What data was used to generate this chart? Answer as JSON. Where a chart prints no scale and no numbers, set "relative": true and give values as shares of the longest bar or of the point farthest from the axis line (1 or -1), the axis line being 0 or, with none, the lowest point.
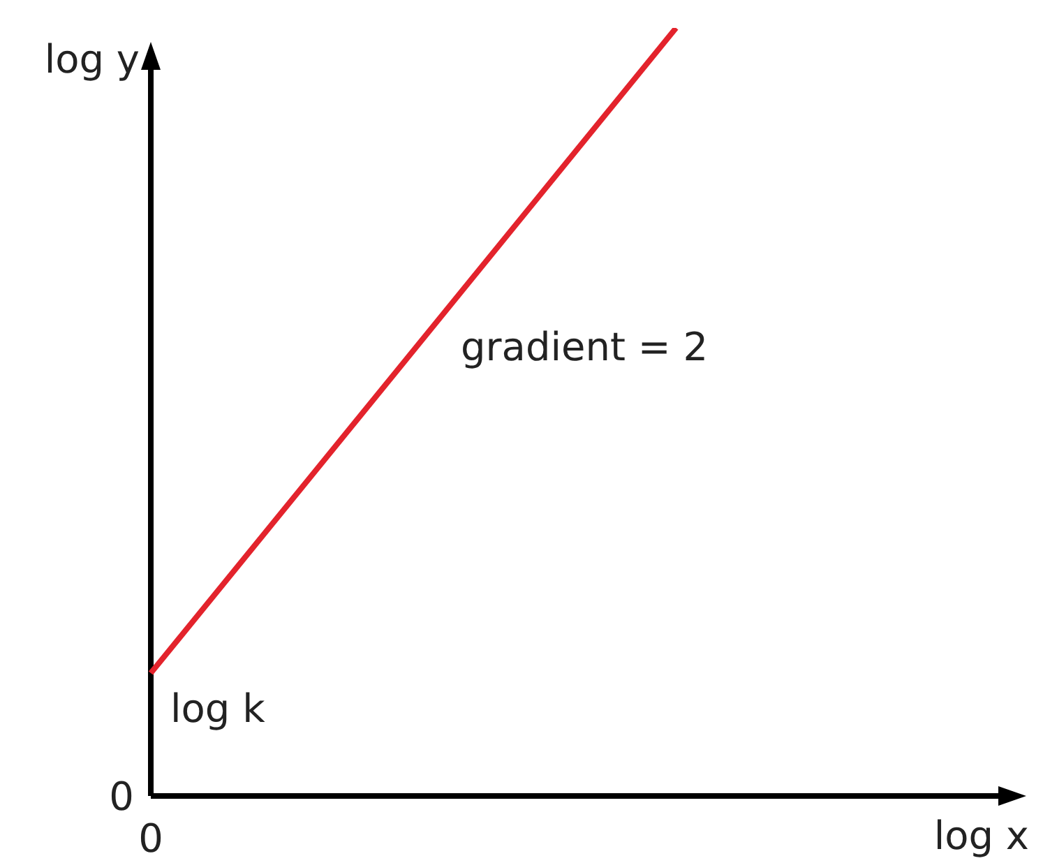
{
  "chart_data": {
    "type": "line",
    "relative": true,
    "xlabel": "log x",
    "ylabel": "log y",
    "categories": [
      null,
      null,
      null,
      null,
      null,
      null
    ],
    "series": [
      {
        "color": "#e3232c",
        "values": [
          0.16,
          0.44,
          0.72,
          1,
          null,
          null
        ]
      }
    ],
    "annotations": [
      "gradient = 2",
      "log k",
      "0",
      "0"
    ],
    "grid": false,
    "legend": false,
    "marker": "none",
    "line_style": "solid"
  }
}
